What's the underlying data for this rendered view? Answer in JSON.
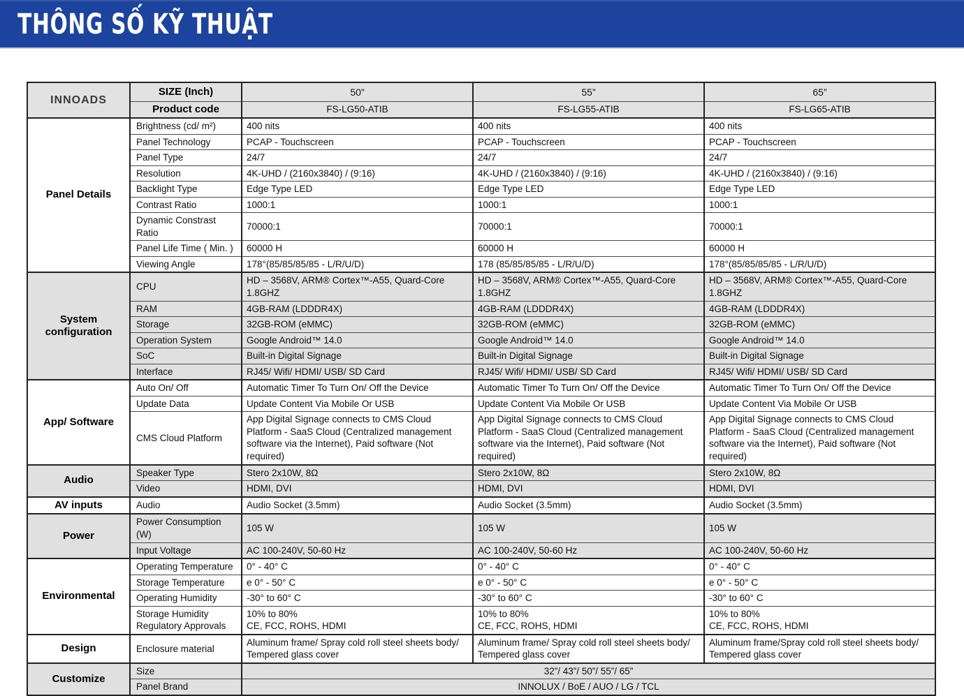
{
  "header": {
    "title": "THÔNG SỐ KỸ THUẬT"
  },
  "colors": {
    "banner_blue": "#1c449e",
    "header_gray": "#e2e2e2",
    "band_gray": "#e0e0e0",
    "border_dark": "#222222"
  },
  "table": {
    "brand": "INNOADS",
    "size_row_label": "SIZE (Inch)",
    "product_row_label": "Product code",
    "sizes": [
      "50”",
      "55”",
      "65”"
    ],
    "product_codes": [
      "FS-LG50-ATIB",
      "FS-LG55-ATIB",
      "FS-LG65-ATIB"
    ],
    "sections": [
      {
        "category": "Panel Details",
        "shaded": false,
        "rows": [
          {
            "label": "Brightness (cd/ m²)",
            "values": [
              "400 nits",
              "400 nits",
              "400 nits"
            ]
          },
          {
            "label": "Panel Technology",
            "values": [
              "PCAP - Touchscreen",
              "PCAP - Touchscreen",
              "PCAP - Touchscreen"
            ]
          },
          {
            "label": "Panel Type",
            "values": [
              "24/7",
              "24/7",
              "24/7"
            ]
          },
          {
            "label": "Resolution",
            "values": [
              "4K-UHD / (2160x3840) / (9:16)",
              "4K-UHD / (2160x3840) / (9:16)",
              "4K-UHD / (2160x3840) / (9:16)"
            ]
          },
          {
            "label": "Backlight Type",
            "values": [
              "Edge Type LED",
              "Edge Type LED",
              "Edge Type LED"
            ]
          },
          {
            "label": "Contrast Ratio",
            "values": [
              "1000:1",
              "1000:1",
              "1000:1"
            ]
          },
          {
            "label": "Dynamic Constrast Ratio",
            "values": [
              "70000:1",
              "70000:1",
              "70000:1"
            ]
          },
          {
            "label": "Panel Life Time ( Min. )",
            "values": [
              "60000 H",
              "60000 H",
              "60000 H"
            ]
          },
          {
            "label": "Viewing Angle",
            "values": [
              "178°(85/85/85/85 - L/R/U/D)",
              "178 (85/85/85/85 - L/R/U/D)",
              "178°(85/85/85/85 - L/R/U/D)"
            ]
          }
        ]
      },
      {
        "category": "System configuration",
        "shaded": true,
        "rows": [
          {
            "label": "CPU",
            "values": [
              "HD – 3568V, ARM® Cortex™-A55, Quard-Core 1.8GHZ",
              "HD – 3568V, ARM® Cortex™-A55, Quard-Core 1.8GHZ",
              "HD – 3568V, ARM® Cortex™-A55, Quard-Core 1.8GHZ"
            ]
          },
          {
            "label": "RAM",
            "values": [
              "4GB-RAM (LDDDR4X)",
              "4GB-RAM (LDDDR4X)",
              "4GB-RAM (LDDDR4X)"
            ]
          },
          {
            "label": "Storage",
            "values": [
              "32GB-ROM (eMMC)",
              "32GB-ROM (eMMC)",
              "32GB-ROM (eMMC)"
            ]
          },
          {
            "label": "Operation System",
            "values": [
              "Google Android™ 14.0",
              "Google Android™ 14.0",
              "Google Android™ 14.0"
            ]
          },
          {
            "label": "SoC",
            "values": [
              "Built-in Digital Signage",
              "Built-in Digital Signage",
              "Built-in Digital Signage"
            ]
          },
          {
            "label": "Interface",
            "values": [
              "RJ45/ Wifi/ HDMI/ USB/ SD Card",
              "RJ45/ Wifi/ HDMI/ USB/ SD Card",
              "RJ45/ Wifi/ HDMI/ USB/ SD Card"
            ]
          }
        ]
      },
      {
        "category": "App/ Software",
        "shaded": false,
        "rows": [
          {
            "label": "Auto On/ Off",
            "values": [
              "Automatic Timer To Turn On/ Off the Device",
              "Automatic Timer To Turn On/ Off the Device",
              "Automatic Timer To Turn On/ Off the Device"
            ]
          },
          {
            "label": "Update Data",
            "values": [
              "Update Content Via Mobile Or USB",
              "Update Content Via Mobile Or USB",
              "Update Content Via Mobile Or USB"
            ]
          },
          {
            "label": "CMS Cloud Platform",
            "values": [
              "App Digital Signage connects to CMS Cloud Platform - SaaS Cloud (Centralized management software via the Internet), Paid software (Not required)",
              "App Digital Signage connects to CMS Cloud Platform - SaaS Cloud (Centralized management software via the Internet), Paid software (Not required)",
              "App Digital Signage connects to CMS Cloud Platform - SaaS Cloud (Centralized management software via the Internet), Paid software (Not required)"
            ]
          }
        ]
      },
      {
        "category": "Audio",
        "shaded": true,
        "rows": [
          {
            "label": "Speaker Type",
            "values": [
              "Stero 2x10W, 8Ω",
              "Stero 2x10W, 8Ω",
              "Stero 2x10W, 8Ω"
            ]
          },
          {
            "label": "Video",
            "values": [
              "HDMI, DVI",
              "HDMI, DVI",
              "HDMI, DVI"
            ]
          }
        ]
      },
      {
        "category": "AV inputs",
        "shaded": false,
        "rows": [
          {
            "label": "Audio",
            "values": [
              "Audio Socket (3.5mm)",
              "Audio Socket (3.5mm)",
              "Audio Socket (3.5mm)"
            ]
          }
        ]
      },
      {
        "category": "Power",
        "shaded": true,
        "rows": [
          {
            "label": "Power Consumption (W)",
            "values": [
              "105 W",
              "105 W",
              "105 W"
            ]
          },
          {
            "label": "Input Voltage",
            "values": [
              "AC 100-240V, 50-60 Hz",
              "AC 100-240V, 50-60 Hz",
              "AC 100-240V, 50-60 Hz"
            ]
          }
        ]
      },
      {
        "category": "Environmental",
        "shaded": false,
        "rows": [
          {
            "label": "Operating Temperature",
            "values": [
              "0° - 40° C",
              "0° - 40° C",
              "0° - 40° C"
            ]
          },
          {
            "label": "Storage Temperature",
            "values": [
              "e 0° - 50° C",
              "e 0° - 50° C",
              "e 0° - 50° C"
            ]
          },
          {
            "label": "Operating Humidity",
            "values": [
              "-30° to 60° C",
              "-30° to 60° C",
              "-30° to 60° C"
            ]
          },
          {
            "label": "Storage Humidity\nRegulatory Approvals",
            "values": [
              "10% to 80%\nCE, FCC, ROHS, HDMI",
              "10% to 80%\nCE, FCC, ROHS, HDMI",
              "10% to 80%\nCE, FCC, ROHS, HDMI"
            ]
          }
        ]
      },
      {
        "category": "Design",
        "shaded": false,
        "rows": [
          {
            "label": "Enclosure material",
            "values": [
              "Aluminum frame/ Spray cold roll steel sheets body/ Tempered glass cover",
              "Aluminum frame/ Spray cold roll steel sheets body/ Tempered glass cover",
              "Aluminum frame/Spray cold roll steel sheets body/ Tempered glass cover"
            ]
          }
        ]
      },
      {
        "category": "Customize",
        "shaded": true,
        "rows": [
          {
            "label": "Size",
            "merged_value": "32”/ 43”/ 50”/ 55”/ 65”"
          },
          {
            "label": "Panel Brand",
            "merged_value": "INNOLUX / BoE / AUO / LG / TCL"
          }
        ]
      }
    ]
  }
}
